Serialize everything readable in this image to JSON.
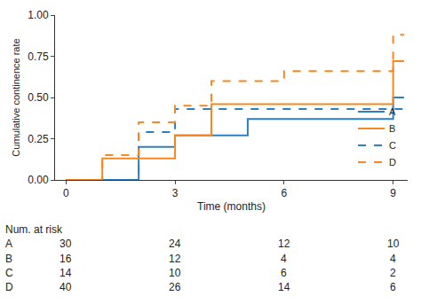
{
  "chart_data": {
    "type": "line",
    "x_label": "Time (months)",
    "y_label": "Cumulative continence rate",
    "xlim": [
      -0.3,
      9.4
    ],
    "xticks": [
      0,
      3,
      6,
      9
    ],
    "ylim": [
      0,
      1
    ],
    "yticks": [
      {
        "value": 0,
        "label": "0.00"
      },
      {
        "value": 0.25,
        "label": "0.25"
      },
      {
        "value": 0.5,
        "label": "0.50"
      },
      {
        "value": 0.75,
        "label": "0.75"
      },
      {
        "value": 1,
        "label": "1.00"
      }
    ],
    "grid": false,
    "legend": "lower right",
    "series": [
      {
        "name": "A",
        "color": "#2f7ec1",
        "line_style": "solid",
        "x": [
          0,
          2,
          3,
          5,
          9,
          9.3
        ],
        "values": [
          0,
          0.2,
          0.27,
          0.37,
          0.5,
          0.5
        ]
      },
      {
        "name": "B",
        "color": "#f5891f",
        "line_style": "solid",
        "x": [
          0,
          1,
          3,
          4,
          9,
          9.3
        ],
        "values": [
          0,
          0.13,
          0.27,
          0.46,
          0.72,
          0.72
        ]
      },
      {
        "name": "C",
        "color": "#2f7ec1",
        "line_style": "dash",
        "x": [
          0,
          2,
          3,
          9.3
        ],
        "values": [
          0,
          0.29,
          0.43,
          0.43
        ]
      },
      {
        "name": "D",
        "color": "#f5891f",
        "line_style": "dash",
        "x": [
          0,
          1,
          2,
          3,
          4,
          6,
          9,
          9.3
        ],
        "values": [
          0,
          0.15,
          0.35,
          0.45,
          0.6,
          0.66,
          0.88,
          0.88
        ]
      }
    ],
    "risk_table": {
      "title": "Num. at risk",
      "times": [
        0,
        3,
        6,
        9
      ],
      "rows": [
        {
          "name": "A",
          "values": [
            30,
            24,
            12,
            10
          ]
        },
        {
          "name": "B",
          "values": [
            16,
            12,
            4,
            4
          ]
        },
        {
          "name": "C",
          "values": [
            14,
            10,
            6,
            2
          ]
        },
        {
          "name": "D",
          "values": [
            40,
            26,
            14,
            6
          ]
        }
      ]
    }
  }
}
